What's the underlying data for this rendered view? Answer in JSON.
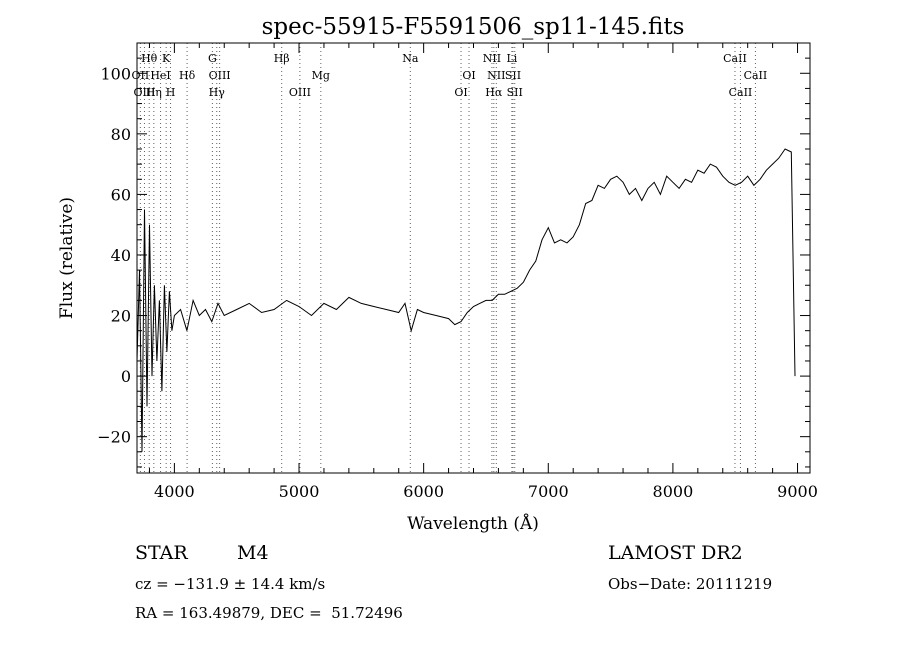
{
  "chart_data": {
    "type": "line",
    "title": "spec-55915-F5591506_sp11-145.fits",
    "xlabel": "Wavelength (Å)",
    "ylabel": "Flux (relative)",
    "xlim": [
      3700,
      9100
    ],
    "ylim": [
      -32,
      110
    ],
    "xticks": [
      4000,
      5000,
      6000,
      7000,
      8000,
      9000
    ],
    "yticks": [
      -20,
      0,
      20,
      40,
      60,
      80,
      100
    ],
    "grid": false,
    "series": [
      {
        "points": [
          [
            3700,
            5
          ],
          [
            3720,
            35
          ],
          [
            3740,
            -25
          ],
          [
            3760,
            55
          ],
          [
            3780,
            -10
          ],
          [
            3800,
            50
          ],
          [
            3820,
            0
          ],
          [
            3840,
            30
          ],
          [
            3860,
            5
          ],
          [
            3880,
            25
          ],
          [
            3900,
            -5
          ],
          [
            3920,
            30
          ],
          [
            3940,
            8
          ],
          [
            3960,
            28
          ],
          [
            3980,
            15
          ],
          [
            4000,
            20
          ],
          [
            4050,
            22
          ],
          [
            4100,
            15
          ],
          [
            4150,
            25
          ],
          [
            4200,
            20
          ],
          [
            4250,
            22
          ],
          [
            4300,
            18
          ],
          [
            4350,
            24
          ],
          [
            4400,
            20
          ],
          [
            4500,
            22
          ],
          [
            4600,
            24
          ],
          [
            4700,
            21
          ],
          [
            4800,
            22
          ],
          [
            4900,
            25
          ],
          [
            5000,
            23
          ],
          [
            5100,
            20
          ],
          [
            5200,
            24
          ],
          [
            5300,
            22
          ],
          [
            5400,
            26
          ],
          [
            5500,
            24
          ],
          [
            5600,
            23
          ],
          [
            5700,
            22
          ],
          [
            5800,
            21
          ],
          [
            5850,
            24
          ],
          [
            5900,
            15
          ],
          [
            5950,
            22
          ],
          [
            6000,
            21
          ],
          [
            6100,
            20
          ],
          [
            6200,
            19
          ],
          [
            6250,
            17
          ],
          [
            6300,
            18
          ],
          [
            6350,
            21
          ],
          [
            6400,
            23
          ],
          [
            6450,
            24
          ],
          [
            6500,
            25
          ],
          [
            6550,
            25
          ],
          [
            6600,
            27
          ],
          [
            6650,
            27
          ],
          [
            6700,
            28
          ],
          [
            6750,
            29
          ],
          [
            6800,
            31
          ],
          [
            6850,
            35
          ],
          [
            6900,
            38
          ],
          [
            6950,
            45
          ],
          [
            7000,
            49
          ],
          [
            7050,
            44
          ],
          [
            7100,
            45
          ],
          [
            7150,
            44
          ],
          [
            7200,
            46
          ],
          [
            7250,
            50
          ],
          [
            7300,
            57
          ],
          [
            7350,
            58
          ],
          [
            7400,
            63
          ],
          [
            7450,
            62
          ],
          [
            7500,
            65
          ],
          [
            7550,
            66
          ],
          [
            7600,
            64
          ],
          [
            7650,
            60
          ],
          [
            7700,
            62
          ],
          [
            7750,
            58
          ],
          [
            7800,
            62
          ],
          [
            7850,
            64
          ],
          [
            7900,
            60
          ],
          [
            7950,
            66
          ],
          [
            8000,
            64
          ],
          [
            8050,
            62
          ],
          [
            8100,
            65
          ],
          [
            8150,
            64
          ],
          [
            8200,
            68
          ],
          [
            8250,
            67
          ],
          [
            8300,
            70
          ],
          [
            8350,
            69
          ],
          [
            8400,
            66
          ],
          [
            8450,
            64
          ],
          [
            8500,
            63
          ],
          [
            8550,
            64
          ],
          [
            8600,
            66
          ],
          [
            8650,
            63
          ],
          [
            8700,
            65
          ],
          [
            8750,
            68
          ],
          [
            8800,
            70
          ],
          [
            8850,
            72
          ],
          [
            8900,
            75
          ],
          [
            8950,
            74
          ],
          [
            8980,
            0
          ]
        ]
      }
    ],
    "emission_lines": [
      {
        "label": "Hθ",
        "x": 3798,
        "row": 1
      },
      {
        "label": "OII",
        "x": 3727,
        "row": 2
      },
      {
        "label": "HeI",
        "x": 3889,
        "row": 2
      },
      {
        "label": "OIII",
        "x": 3760,
        "row": 3
      },
      {
        "label": "Hη",
        "x": 3835,
        "row": 3
      },
      {
        "label": "K",
        "x": 3934,
        "row": 1
      },
      {
        "label": "H",
        "x": 3969,
        "row": 3
      },
      {
        "label": "Hδ",
        "x": 4102,
        "row": 2
      },
      {
        "label": "G",
        "x": 4305,
        "row": 1
      },
      {
        "label": "OIII",
        "x": 4363,
        "row": 2
      },
      {
        "label": "Hγ",
        "x": 4340,
        "row": 3
      },
      {
        "label": "Hβ",
        "x": 4861,
        "row": 1
      },
      {
        "label": "OIII",
        "x": 5007,
        "row": 3
      },
      {
        "label": "Mg",
        "x": 5175,
        "row": 2
      },
      {
        "label": "Na",
        "x": 5893,
        "row": 1
      },
      {
        "label": "OI",
        "x": 6300,
        "row": 3
      },
      {
        "label": "OI",
        "x": 6364,
        "row": 2
      },
      {
        "label": "NII",
        "x": 6548,
        "row": 1
      },
      {
        "label": "NII",
        "x": 6583,
        "row": 2
      },
      {
        "label": "Hα",
        "x": 6563,
        "row": 3
      },
      {
        "label": "Li",
        "x": 6708,
        "row": 1
      },
      {
        "label": "SII",
        "x": 6717,
        "row": 2
      },
      {
        "label": "SII",
        "x": 6731,
        "row": 3
      },
      {
        "label": "CaII",
        "x": 8498,
        "row": 1
      },
      {
        "label": "CaII",
        "x": 8542,
        "row": 3
      },
      {
        "label": "CaII",
        "x": 8662,
        "row": 2
      }
    ]
  },
  "info": {
    "class": "STAR",
    "subclass": "M4",
    "survey": "LAMOST DR2",
    "cz": "cz = −131.9 ± 14.4 km/s",
    "obs_date": "Obs−Date: 20111219",
    "radec": "RA = 163.49879, DEC =  51.72496"
  }
}
